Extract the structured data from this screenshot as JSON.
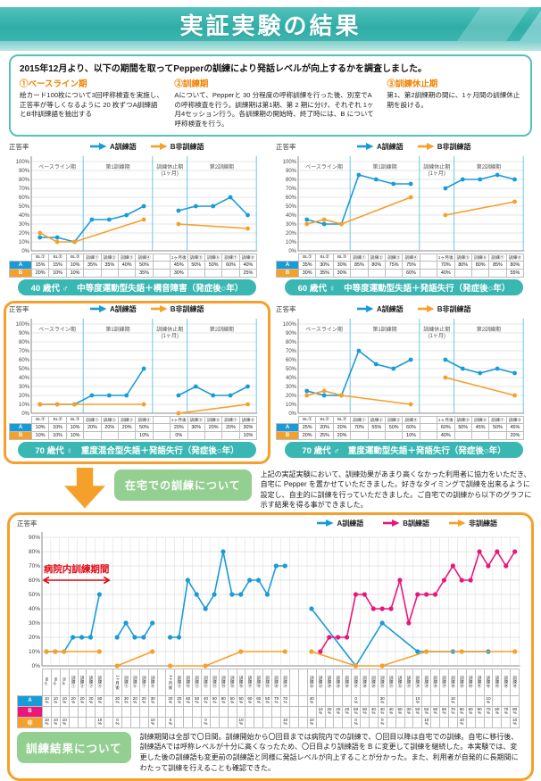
{
  "palette": {
    "accent_teal": "#3ab7b3",
    "accent_orange": "#f6a02c",
    "series_blue": "#189bd7",
    "series_pink": "#e81779",
    "series_orange": "#f6a02c",
    "heading_orange": "#ef8200",
    "green_button": "#94cf92",
    "annotation_red": "#e20613"
  },
  "header": {
    "title": "実証実験の結果"
  },
  "intro": {
    "lead": "2015年12月より、以下の期間を取ってPepperの訓練により発話レベルが向上するかを調査しました。",
    "sections": [
      {
        "heading": "①ベースライン期",
        "body": "絵カード100枚について3回呼称検査を実施し、正答率が等しくなるように 20 枚ずつA訓練語とB非訓練語を抽出する"
      },
      {
        "heading": "②訓練期",
        "body": "Aについて、Pepperと 30 分程度の呼称訓練を行った後、別室でAの呼称検査を行う。訓練期は第1期、第 2 期に分け、それぞれ 1ヶ月4セッション行う。各訓練期の開始時、終了時には、B について呼称検査を行う。"
      },
      {
        "heading": "③訓練休止期",
        "body": "第1、第2訓練期の間に、1ヶ月間の訓練休止期を設ける。"
      }
    ]
  },
  "home_training": {
    "button": "在宅での訓練について",
    "body": "上記の実証実験において、訓練効果があまり高くなかった利用者に協力をいただき、自宅に Pepper を置かせていただきました。好きなタイミングで訓練を出来るように設定し、自主的に訓練を行っていただきました。ご自宅での訓練から以下のグラフに示す結果を得る事ができました。"
  },
  "result": {
    "button": "訓練結果について",
    "body": "訓練期間は全部で〇日間。訓練開始から〇回目までは病院内での訓練で、〇回目以降は自宅での訓練。自宅に移行後、訓練語Aでは呼称レベルが十分に高くなったため、〇日目より訓練語を B に変更して訓練を継続した。本実験では、変更した後の訓練語も変更前の訓練語と同様に発話レベルが向上することが分かった。また、利用者が自発的に長期間にわたって訓練を行えることも確認できた。"
  },
  "chart_data": [
    {
      "type": "line",
      "title": "40 歳代 ♂　中等度運動型失語＋構音障害（発症後○年）",
      "ylabel": "正答率",
      "ylim": [
        0,
        100
      ],
      "grid": true,
      "legend_position": "top",
      "categories": [
        "BL①",
        "BL②",
        "BL③",
        "訓練①",
        "訓練②",
        "訓練③",
        "訓練④",
        "",
        "1ヶ月後",
        "訓練⑤",
        "訓練⑥",
        "訓練⑦",
        "訓練⑧"
      ],
      "phases": [
        {
          "label": "ベースライン期",
          "span": [
            0,
            3
          ]
        },
        {
          "label": "第1訓練期",
          "span": [
            3,
            7
          ]
        },
        {
          "label": "訓練休止期",
          "label2": "(1ヶ月)",
          "span": [
            7,
            9
          ]
        },
        {
          "label": "第2訓練期",
          "span": [
            9,
            13
          ]
        }
      ],
      "sections": [
        [
          0,
          7
        ],
        [
          8,
          13
        ]
      ],
      "series": [
        {
          "name": "A訓練語",
          "short": "A",
          "color": "#189bd7",
          "values": [
            15,
            15,
            10,
            35,
            35,
            40,
            50,
            null,
            45,
            50,
            50,
            60,
            40
          ]
        },
        {
          "name": "B非訓練語",
          "short": "B",
          "color": "#f6a02c",
          "values": [
            20,
            10,
            10,
            null,
            null,
            null,
            35,
            null,
            30,
            null,
            null,
            null,
            25
          ]
        }
      ]
    },
    {
      "type": "line",
      "title": "60 歳代 ♀　中等度運動型失語＋発語失行（発症後○年）",
      "ylabel": "正答率",
      "ylim": [
        0,
        100
      ],
      "grid": true,
      "legend_position": "top",
      "categories": [
        "BL①",
        "BL②",
        "BL③",
        "訓練①",
        "訓練②",
        "訓練③",
        "訓練④",
        "",
        "1ヶ月後",
        "訓練⑤",
        "訓練⑥",
        "訓練⑦",
        "訓練⑧"
      ],
      "phases": [
        {
          "label": "ベースライン期",
          "span": [
            0,
            3
          ]
        },
        {
          "label": "第1訓練期",
          "span": [
            3,
            7
          ]
        },
        {
          "label": "訓練休止期",
          "label2": "(1ヶ月)",
          "span": [
            7,
            9
          ]
        },
        {
          "label": "第2訓練期",
          "span": [
            9,
            13
          ]
        }
      ],
      "sections": [
        [
          0,
          7
        ],
        [
          8,
          13
        ]
      ],
      "series": [
        {
          "name": "A訓練語",
          "short": "A",
          "color": "#189bd7",
          "values": [
            35,
            30,
            30,
            85,
            80,
            75,
            75,
            null,
            70,
            80,
            80,
            85,
            80
          ]
        },
        {
          "name": "B非訓練語",
          "short": "B",
          "color": "#f6a02c",
          "values": [
            30,
            35,
            30,
            null,
            null,
            null,
            60,
            null,
            40,
            null,
            null,
            null,
            55
          ]
        }
      ]
    },
    {
      "type": "line",
      "title": "70 歳代 ♀　重度混合型失語＋発語失行（発症後○年）",
      "ylabel": "正答率",
      "ylim": [
        0,
        100
      ],
      "grid": true,
      "legend_position": "top",
      "categories": [
        "BL①",
        "BL②",
        "BL③",
        "訓練①",
        "訓練②",
        "訓練③",
        "訓練④",
        "",
        "1ヶ月後",
        "訓練⑤",
        "訓練⑥",
        "訓練⑦",
        "訓練⑧"
      ],
      "phases": [
        {
          "label": "ベースライン期",
          "span": [
            0,
            3
          ]
        },
        {
          "label": "第1訓練期",
          "span": [
            3,
            7
          ]
        },
        {
          "label": "訓練休止期",
          "label2": "(1ヶ月)",
          "span": [
            7,
            9
          ]
        },
        {
          "label": "第2訓練期",
          "span": [
            9,
            13
          ]
        }
      ],
      "sections": [
        [
          0,
          7
        ],
        [
          8,
          13
        ]
      ],
      "series": [
        {
          "name": "A訓練語",
          "short": "A",
          "color": "#189bd7",
          "values": [
            10,
            10,
            10,
            20,
            20,
            20,
            50,
            null,
            20,
            30,
            20,
            20,
            30
          ]
        },
        {
          "name": "B非訓練語",
          "short": "B",
          "color": "#f6a02c",
          "values": [
            10,
            10,
            10,
            null,
            null,
            null,
            10,
            null,
            0,
            null,
            null,
            null,
            10
          ]
        }
      ]
    },
    {
      "type": "line",
      "title": "70 歳代 ♂　重度運動型失語＋発語失行（発症後○年）",
      "ylabel": "正答率",
      "ylim": [
        0,
        100
      ],
      "grid": true,
      "legend_position": "top",
      "categories": [
        "BL①",
        "BL②",
        "BL③",
        "訓練①",
        "訓練②",
        "訓練③",
        "訓練④",
        "",
        "1ヶ月後",
        "訓練⑤",
        "訓練⑥",
        "訓練⑦",
        "訓練⑧"
      ],
      "phases": [
        {
          "label": "ベースライン期",
          "span": [
            0,
            3
          ]
        },
        {
          "label": "第1訓練期",
          "span": [
            3,
            7
          ]
        },
        {
          "label": "訓練休止期",
          "label2": "(1ヶ月)",
          "span": [
            7,
            9
          ]
        },
        {
          "label": "第2訓練期",
          "span": [
            9,
            13
          ]
        }
      ],
      "sections": [
        [
          0,
          7
        ],
        [
          8,
          13
        ]
      ],
      "series": [
        {
          "name": "A訓練語",
          "short": "A",
          "color": "#189bd7",
          "values": [
            25,
            20,
            20,
            70,
            55,
            50,
            60,
            null,
            60,
            50,
            45,
            50,
            45
          ]
        },
        {
          "name": "B非訓練語",
          "short": "B",
          "color": "#f6a02c",
          "values": [
            20,
            25,
            20,
            null,
            null,
            null,
            10,
            null,
            40,
            null,
            null,
            null,
            20
          ]
        }
      ]
    },
    {
      "type": "line",
      "title": "在宅での訓練の結果",
      "ylabel": "正答率",
      "ylim": [
        0,
        90
      ],
      "grid": true,
      "legend_position": "top-right",
      "annotation": {
        "text": "病院内訓練期間",
        "y": 60,
        "span": [
          0,
          7.6
        ]
      },
      "categories": [
        "BL①",
        "BL②",
        "BL③",
        "訓練①",
        "訓練②",
        "訓練③",
        "訓練④",
        "",
        "1ヶ月後",
        "訓練⑤",
        "訓練⑥",
        "訓練⑦",
        "訓練⑧",
        "",
        "1ヶ月後",
        "訓練⑨",
        "訓練⑩",
        "訓練⑪",
        "訓練⑫",
        "訓練⑬",
        "訓練⑭",
        "訓練⑮",
        "訓練⑯",
        "訓練⑰",
        "訓練⑱",
        "訓練⑲",
        "訓練⑳",
        "訓練㉑",
        "",
        "",
        "訓練㉒",
        "訓練㉓",
        "訓練㉔",
        "訓練㉕",
        "訓練㉖",
        "訓練㉗",
        "訓練㉘",
        "訓練㉙",
        "訓練㉚",
        "訓練㉛",
        "訓練㉜",
        "訓練㉝",
        "訓練㉞",
        "訓練㉟",
        "訓練㊱",
        "訓練㊲",
        "訓練㊳",
        "訓練㊴",
        "訓練㊵",
        "訓練㊶",
        "訓練㊷",
        "訓練㊸",
        "訓練㊹",
        "訓練㊺"
      ],
      "sections": [
        [
          0,
          7
        ],
        [
          8,
          13
        ],
        [
          14,
          28
        ],
        [
          30,
          54
        ]
      ],
      "series": [
        {
          "name": "A訓練語",
          "short": "A",
          "color": "#189bd7",
          "values": [
            10,
            10,
            10,
            20,
            20,
            20,
            50,
            null,
            20,
            30,
            20,
            20,
            30,
            null,
            20,
            20,
            60,
            50,
            40,
            50,
            80,
            50,
            50,
            60,
            60,
            50,
            70,
            70,
            null,
            null,
            40,
            null,
            null,
            null,
            null,
            0,
            null,
            null,
            30,
            null,
            null,
            null,
            10,
            null,
            null,
            null,
            10,
            null,
            null,
            null,
            10,
            null,
            null,
            null
          ]
        },
        {
          "name": "B訓練語",
          "short": "B",
          "color": "#e81779",
          "values": [
            null,
            null,
            null,
            null,
            null,
            null,
            null,
            null,
            null,
            null,
            null,
            null,
            null,
            null,
            null,
            null,
            null,
            null,
            null,
            null,
            null,
            null,
            null,
            null,
            null,
            null,
            null,
            null,
            null,
            null,
            null,
            10,
            20,
            20,
            20,
            50,
            50,
            40,
            40,
            40,
            60,
            30,
            50,
            50,
            50,
            60,
            70,
            60,
            60,
            80,
            70,
            80,
            70,
            80
          ]
        },
        {
          "name": "非訓練語",
          "short": "非",
          "color": "#f6a02c",
          "values": [
            10,
            10,
            10,
            null,
            null,
            null,
            10,
            null,
            0,
            null,
            null,
            null,
            10,
            null,
            0,
            null,
            null,
            null,
            0,
            null,
            null,
            null,
            10,
            null,
            null,
            null,
            null,
            10,
            null,
            null,
            10,
            null,
            null,
            null,
            null,
            0,
            null,
            null,
            0,
            null,
            null,
            null,
            null,
            10,
            null,
            null,
            null,
            10,
            null,
            null,
            null,
            null,
            null,
            10
          ]
        }
      ]
    }
  ]
}
